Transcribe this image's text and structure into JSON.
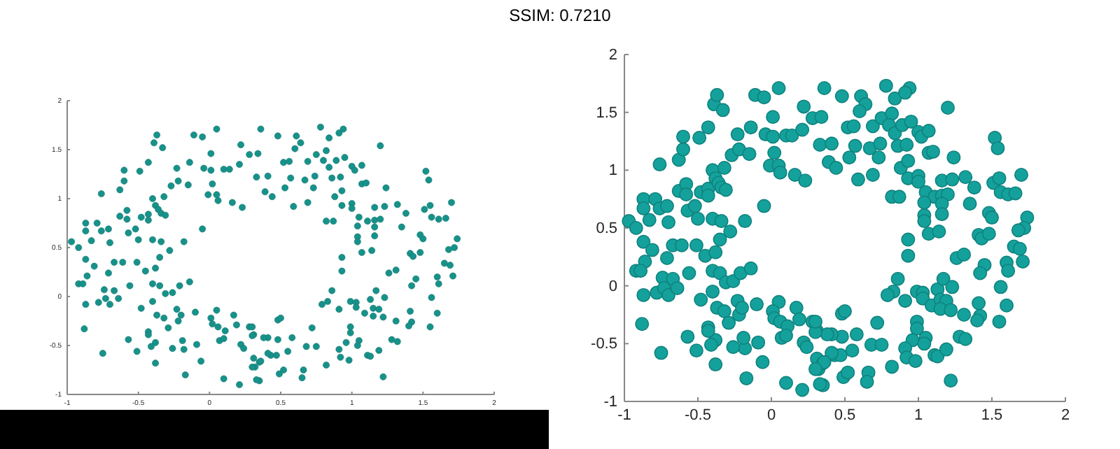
{
  "chart_data": [
    {
      "type": "scatter",
      "marker": "circle",
      "color": "#17928a",
      "annotations": [
        "SSIM: 0.7210"
      ],
      "xlim": [
        -1,
        2
      ],
      "ylim": [
        -1,
        2
      ],
      "xticks": [
        -1,
        -0.5,
        0,
        0.5,
        1,
        1.5,
        2
      ],
      "yticks": [
        -1,
        -0.5,
        0,
        0.5,
        1,
        1.5,
        2
      ],
      "x": [
        -0.97,
        -0.92,
        -0.87,
        -0.87,
        -0.83,
        -0.79,
        -0.76,
        -0.71,
        -0.7,
        -0.76,
        -0.87,
        -0.81,
        -0.86,
        -0.92,
        -0.89,
        -0.87,
        -0.88,
        -0.75,
        -0.78,
        -0.74,
        -0.73,
        -0.7,
        -0.67,
        -0.71,
        -0.67,
        -0.61,
        -0.64,
        -0.56,
        -0.63,
        -0.6,
        -0.6,
        -0.63,
        -0.58,
        -0.58,
        -0.57,
        -0.52,
        -0.5,
        -0.51,
        -0.48,
        -0.43,
        -0.43,
        -0.49,
        -0.43,
        -0.39,
        -0.37,
        -0.33,
        -0.4,
        -0.38,
        -0.36,
        -0.34,
        -0.31,
        -0.32,
        -0.27,
        -0.22,
        -0.23,
        -0.14,
        -0.15,
        -0.11,
        -0.05,
        0.05,
        0.01,
        -0.04,
        0.01,
        0.02,
        -0.01,
        0.05,
        0.06,
        0.1,
        0.14,
        0.16,
        0.23,
        0.21,
        0.22,
        -0.05,
        -0.4,
        -0.34,
        -0.18,
        -0.28,
        -0.35,
        -0.45,
        -0.38,
        -0.4,
        -0.35,
        -0.31,
        -0.26,
        -0.21,
        -0.14,
        -0.48,
        -0.4,
        -0.37,
        -0.32,
        -0.29,
        -0.23,
        -0.22,
        -0.2,
        -0.1,
        0.05,
        0.01,
        0.02,
        0.06,
        0.11,
        0.07,
        0.1,
        0.17,
        0.19,
        0.28,
        0.31,
        0.22,
        0.24,
        0.31,
        0.32,
        0.35,
        0.35,
        0.21,
        0.1,
        -0.06,
        -0.09,
        -0.17,
        -0.18,
        -0.26,
        -0.19,
        -0.38,
        -0.38,
        -0.41,
        -0.43,
        -0.43,
        -0.51,
        -0.57,
        0.36,
        0.48,
        0.61,
        0.64,
        0.78,
        0.84,
        0.94,
        0.91,
        1.2,
        0.28,
        0.34,
        0.52,
        0.56,
        0.6,
        0.69,
        0.75,
        0.82,
        0.8,
        0.84,
        0.89,
        0.95,
        1.0,
        1.02,
        1.07,
        0.33,
        0.41,
        0.57,
        0.67,
        0.74,
        0.86,
        0.92,
        1.07,
        1.1,
        0.39,
        0.44,
        0.53,
        0.73,
        0.88,
        0.93,
        0.59,
        0.69,
        0.93,
        1.0,
        1.0,
        1.16,
        1.23,
        1.24,
        1.32,
        1.38,
        1.52,
        1.54,
        1.51,
        1.55,
        1.7,
        1.56,
        1.61,
        1.66,
        0.82,
        0.87,
        1.05,
        1.11,
        1.16,
        1.2,
        1.04,
        1.16,
        1.35,
        1.16,
        1.04,
        1.04,
        1.07,
        1.14,
        1.48,
        1.5,
        1.74,
        1.72,
        1.68,
        1.41,
        1.43,
        1.48,
        0.93,
        0.93,
        1.65,
        1.69,
        1.71,
        1.26,
        1.31,
        1.45,
        1.42,
        1.6,
        1.61,
        1.56,
        0.86,
        0.83,
        0.79,
        0.91,
        0.99,
        1.03,
        1.03,
        1.13,
        1.17,
        1.23,
        1.09,
        1.15,
        1.19,
        1.15,
        1.22,
        1.31,
        1.41,
        1.42,
        1.4,
        1.6,
        1.55,
        0.72,
        0.99,
        0.99,
        0.96,
        1.05,
        1.04,
        0.91,
        0.92,
        0.98,
        1.11,
        1.13,
        1.19,
        1.28,
        1.32,
        0.82,
        0.68,
        0.75,
        0.66,
        0.65,
        1.22,
        0.49,
        0.52,
        0.33,
        0.55,
        0.58,
        0.48,
        0.41,
        0.38,
        0.43,
        0.47,
        0.41,
        0.3,
        0.36,
        0.3,
        0.48,
        0.5,
        0.3
      ],
      "values": [
        0.56,
        0.5,
        0.75,
        0.67,
        0.57,
        0.75,
        0.67,
        0.69,
        0.55,
        1.05,
        0.38,
        0.31,
        0.21,
        0.13,
        0.13,
        -0.08,
        -0.33,
        -0.58,
        -0.06,
        0.07,
        -0.02,
        -0.08,
        0.06,
        0.24,
        0.35,
        0.35,
        -0.02,
        0.11,
        1.09,
        1.18,
        1.29,
        0.82,
        0.88,
        0.79,
        0.65,
        0.69,
        0.58,
        0.35,
        0.81,
        0.84,
        0.78,
        1.28,
        1.37,
        1.57,
        1.65,
        1.52,
        1.0,
        0.93,
        0.89,
        0.85,
        0.83,
        1.02,
        1.13,
        1.18,
        1.31,
        1.37,
        1.14,
        1.65,
        1.63,
        1.71,
        1.46,
        1.31,
        1.29,
        1.15,
        1.04,
        1.04,
        0.98,
        1.3,
        1.3,
        0.96,
        0.91,
        1.35,
        1.55,
        0.69,
        0.58,
        0.56,
        0.56,
        0.47,
        0.4,
        0.26,
        0.29,
        0.13,
        0.11,
        0.03,
        0.04,
        0.11,
        0.15,
        -0.12,
        -0.05,
        -0.19,
        -0.22,
        -0.32,
        -0.13,
        -0.25,
        -0.19,
        -0.16,
        -0.14,
        -0.22,
        -0.28,
        -0.31,
        -0.35,
        -0.45,
        -0.43,
        -0.19,
        -0.29,
        -0.31,
        -0.39,
        -0.49,
        -0.53,
        -0.63,
        -0.72,
        -0.67,
        -0.86,
        -0.9,
        -0.84,
        -0.66,
        -0.49,
        -0.8,
        -0.54,
        -0.53,
        -0.45,
        -0.68,
        -0.47,
        -0.51,
        -0.36,
        -0.39,
        -0.56,
        -0.44,
        1.71,
        1.64,
        1.64,
        1.57,
        1.73,
        1.62,
        1.71,
        1.67,
        1.54,
        1.45,
        1.46,
        1.37,
        1.38,
        1.51,
        1.38,
        1.45,
        1.49,
        1.39,
        1.32,
        1.39,
        1.42,
        1.33,
        1.29,
        1.34,
        1.22,
        1.23,
        1.21,
        1.19,
        1.23,
        1.21,
        1.22,
        1.15,
        1.16,
        1.07,
        1.02,
        1.11,
        1.11,
        1.02,
        1.08,
        0.92,
        0.96,
        0.93,
        0.95,
        0.9,
        0.91,
        0.92,
        1.11,
        0.94,
        0.85,
        1.28,
        1.19,
        0.89,
        0.93,
        0.96,
        0.81,
        0.79,
        0.8,
        0.77,
        0.77,
        0.81,
        0.77,
        0.78,
        0.79,
        0.72,
        0.71,
        0.71,
        0.62,
        0.61,
        0.56,
        0.45,
        0.47,
        0.63,
        0.59,
        0.59,
        0.5,
        0.48,
        0.44,
        0.41,
        0.45,
        0.4,
        0.26,
        0.34,
        0.32,
        0.21,
        0.24,
        0.27,
        0.18,
        0.11,
        0.2,
        0.13,
        -0.01,
        0.06,
        -0.05,
        -0.08,
        -0.13,
        -0.05,
        -0.06,
        -0.11,
        -0.03,
        0.06,
        -0.01,
        -0.17,
        -0.12,
        -0.13,
        -0.2,
        -0.21,
        -0.25,
        -0.15,
        -0.26,
        -0.3,
        -0.17,
        -0.31,
        -0.32,
        -0.31,
        -0.37,
        -0.47,
        -0.45,
        -0.5,
        -0.54,
        -0.62,
        -0.65,
        -0.6,
        -0.61,
        -0.55,
        -0.44,
        -0.46,
        -0.7,
        -0.51,
        -0.51,
        -0.75,
        -0.83,
        -0.82,
        -0.79,
        -0.75,
        -0.85,
        -0.56,
        -0.42,
        -0.44,
        -0.42,
        -0.42,
        -0.6,
        -0.6,
        -0.58,
        -0.4,
        -0.66,
        -0.72,
        -0.24,
        -0.22,
        -0.31
      ]
    },
    {
      "type": "scatter",
      "marker": "circle",
      "color": "#14a19c",
      "xlim": [
        -1,
        2
      ],
      "ylim": [
        -1,
        2
      ],
      "xticks": [
        -1,
        -0.5,
        0,
        0.5,
        1,
        1.5,
        2
      ],
      "yticks": [
        -1,
        -0.5,
        0,
        0.5,
        1,
        1.5,
        2
      ],
      "x": [
        -0.97,
        -0.92,
        -0.87,
        -0.87,
        -0.83,
        -0.79,
        -0.76,
        -0.71,
        -0.7,
        -0.76,
        -0.87,
        -0.81,
        -0.86,
        -0.92,
        -0.89,
        -0.87,
        -0.88,
        -0.75,
        -0.78,
        -0.74,
        -0.73,
        -0.7,
        -0.67,
        -0.71,
        -0.67,
        -0.61,
        -0.64,
        -0.56,
        -0.63,
        -0.6,
        -0.6,
        -0.63,
        -0.58,
        -0.58,
        -0.57,
        -0.52,
        -0.5,
        -0.51,
        -0.48,
        -0.43,
        -0.43,
        -0.49,
        -0.43,
        -0.39,
        -0.37,
        -0.33,
        -0.4,
        -0.38,
        -0.36,
        -0.34,
        -0.31,
        -0.32,
        -0.27,
        -0.22,
        -0.23,
        -0.14,
        -0.15,
        -0.11,
        -0.05,
        0.05,
        0.01,
        -0.04,
        0.01,
        0.02,
        -0.01,
        0.05,
        0.06,
        0.1,
        0.14,
        0.16,
        0.23,
        0.21,
        0.22,
        -0.05,
        -0.4,
        -0.34,
        -0.18,
        -0.28,
        -0.35,
        -0.45,
        -0.38,
        -0.4,
        -0.35,
        -0.31,
        -0.26,
        -0.21,
        -0.14,
        -0.48,
        -0.4,
        -0.37,
        -0.32,
        -0.29,
        -0.23,
        -0.22,
        -0.2,
        -0.1,
        0.05,
        0.01,
        0.02,
        0.06,
        0.11,
        0.07,
        0.1,
        0.17,
        0.19,
        0.28,
        0.31,
        0.22,
        0.24,
        0.31,
        0.32,
        0.35,
        0.35,
        0.21,
        0.1,
        -0.06,
        -0.09,
        -0.17,
        -0.18,
        -0.26,
        -0.19,
        -0.38,
        -0.38,
        -0.41,
        -0.43,
        -0.43,
        -0.51,
        -0.57,
        0.36,
        0.48,
        0.61,
        0.64,
        0.78,
        0.84,
        0.94,
        0.91,
        1.2,
        0.28,
        0.34,
        0.52,
        0.56,
        0.6,
        0.69,
        0.75,
        0.82,
        0.8,
        0.84,
        0.89,
        0.95,
        1.0,
        1.02,
        1.07,
        0.33,
        0.41,
        0.57,
        0.67,
        0.74,
        0.86,
        0.92,
        1.07,
        1.1,
        0.39,
        0.44,
        0.53,
        0.73,
        0.88,
        0.93,
        0.59,
        0.69,
        0.93,
        1.0,
        1.0,
        1.16,
        1.23,
        1.24,
        1.32,
        1.38,
        1.52,
        1.54,
        1.51,
        1.55,
        1.7,
        1.56,
        1.61,
        1.66,
        0.82,
        0.87,
        1.05,
        1.11,
        1.16,
        1.2,
        1.04,
        1.16,
        1.35,
        1.16,
        1.04,
        1.04,
        1.07,
        1.14,
        1.48,
        1.5,
        1.74,
        1.72,
        1.68,
        1.41,
        1.43,
        1.48,
        0.93,
        0.93,
        1.65,
        1.69,
        1.71,
        1.26,
        1.31,
        1.45,
        1.42,
        1.6,
        1.61,
        1.56,
        0.86,
        0.83,
        0.79,
        0.91,
        0.99,
        1.03,
        1.03,
        1.13,
        1.17,
        1.23,
        1.09,
        1.15,
        1.19,
        1.15,
        1.22,
        1.31,
        1.41,
        1.42,
        1.4,
        1.6,
        1.55,
        0.72,
        0.99,
        0.99,
        0.96,
        1.05,
        1.04,
        0.91,
        0.92,
        0.98,
        1.11,
        1.13,
        1.19,
        1.28,
        1.32,
        0.82,
        0.68,
        0.75,
        0.66,
        0.65,
        1.22,
        0.49,
        0.52,
        0.33,
        0.55,
        0.58,
        0.48,
        0.41,
        0.38,
        0.43,
        0.47,
        0.41,
        0.3,
        0.36,
        0.3,
        0.48,
        0.5,
        0.3
      ],
      "values": [
        0.56,
        0.5,
        0.75,
        0.67,
        0.57,
        0.75,
        0.67,
        0.69,
        0.55,
        1.05,
        0.38,
        0.31,
        0.21,
        0.13,
        0.13,
        -0.08,
        -0.33,
        -0.58,
        -0.06,
        0.07,
        -0.02,
        -0.08,
        0.06,
        0.24,
        0.35,
        0.35,
        -0.02,
        0.11,
        1.09,
        1.18,
        1.29,
        0.82,
        0.88,
        0.79,
        0.65,
        0.69,
        0.58,
        0.35,
        0.81,
        0.84,
        0.78,
        1.28,
        1.37,
        1.57,
        1.65,
        1.52,
        1.0,
        0.93,
        0.89,
        0.85,
        0.83,
        1.02,
        1.13,
        1.18,
        1.31,
        1.37,
        1.14,
        1.65,
        1.63,
        1.71,
        1.46,
        1.31,
        1.29,
        1.15,
        1.04,
        1.04,
        0.98,
        1.3,
        1.3,
        0.96,
        0.91,
        1.35,
        1.55,
        0.69,
        0.58,
        0.56,
        0.56,
        0.47,
        0.4,
        0.26,
        0.29,
        0.13,
        0.11,
        0.03,
        0.04,
        0.11,
        0.15,
        -0.12,
        -0.05,
        -0.19,
        -0.22,
        -0.32,
        -0.13,
        -0.25,
        -0.19,
        -0.16,
        -0.14,
        -0.22,
        -0.28,
        -0.31,
        -0.35,
        -0.45,
        -0.43,
        -0.19,
        -0.29,
        -0.31,
        -0.39,
        -0.49,
        -0.53,
        -0.63,
        -0.72,
        -0.67,
        -0.86,
        -0.9,
        -0.84,
        -0.66,
        -0.49,
        -0.8,
        -0.54,
        -0.53,
        -0.45,
        -0.68,
        -0.47,
        -0.51,
        -0.36,
        -0.39,
        -0.56,
        -0.44,
        1.71,
        1.64,
        1.64,
        1.57,
        1.73,
        1.62,
        1.71,
        1.67,
        1.54,
        1.45,
        1.46,
        1.37,
        1.38,
        1.51,
        1.38,
        1.45,
        1.49,
        1.39,
        1.32,
        1.39,
        1.42,
        1.33,
        1.29,
        1.34,
        1.22,
        1.23,
        1.21,
        1.19,
        1.23,
        1.21,
        1.22,
        1.15,
        1.16,
        1.07,
        1.02,
        1.11,
        1.11,
        1.02,
        1.08,
        0.92,
        0.96,
        0.93,
        0.95,
        0.9,
        0.91,
        0.92,
        1.11,
        0.94,
        0.85,
        1.28,
        1.19,
        0.89,
        0.93,
        0.96,
        0.81,
        0.79,
        0.8,
        0.77,
        0.77,
        0.81,
        0.77,
        0.78,
        0.79,
        0.72,
        0.71,
        0.71,
        0.62,
        0.61,
        0.56,
        0.45,
        0.47,
        0.63,
        0.59,
        0.59,
        0.5,
        0.48,
        0.44,
        0.41,
        0.45,
        0.4,
        0.26,
        0.34,
        0.32,
        0.21,
        0.24,
        0.27,
        0.18,
        0.11,
        0.2,
        0.13,
        -0.01,
        0.06,
        -0.05,
        -0.08,
        -0.13,
        -0.05,
        -0.06,
        -0.11,
        -0.03,
        0.06,
        -0.01,
        -0.17,
        -0.12,
        -0.13,
        -0.2,
        -0.21,
        -0.25,
        -0.15,
        -0.26,
        -0.3,
        -0.17,
        -0.31,
        -0.32,
        -0.31,
        -0.37,
        -0.47,
        -0.45,
        -0.5,
        -0.54,
        -0.62,
        -0.65,
        -0.6,
        -0.61,
        -0.55,
        -0.44,
        -0.46,
        -0.7,
        -0.51,
        -0.51,
        -0.75,
        -0.83,
        -0.82,
        -0.79,
        -0.75,
        -0.85,
        -0.56,
        -0.42,
        -0.44,
        -0.42,
        -0.42,
        -0.6,
        -0.6,
        -0.58,
        -0.4,
        -0.66,
        -0.72,
        -0.24,
        -0.22,
        -0.31
      ]
    }
  ]
}
